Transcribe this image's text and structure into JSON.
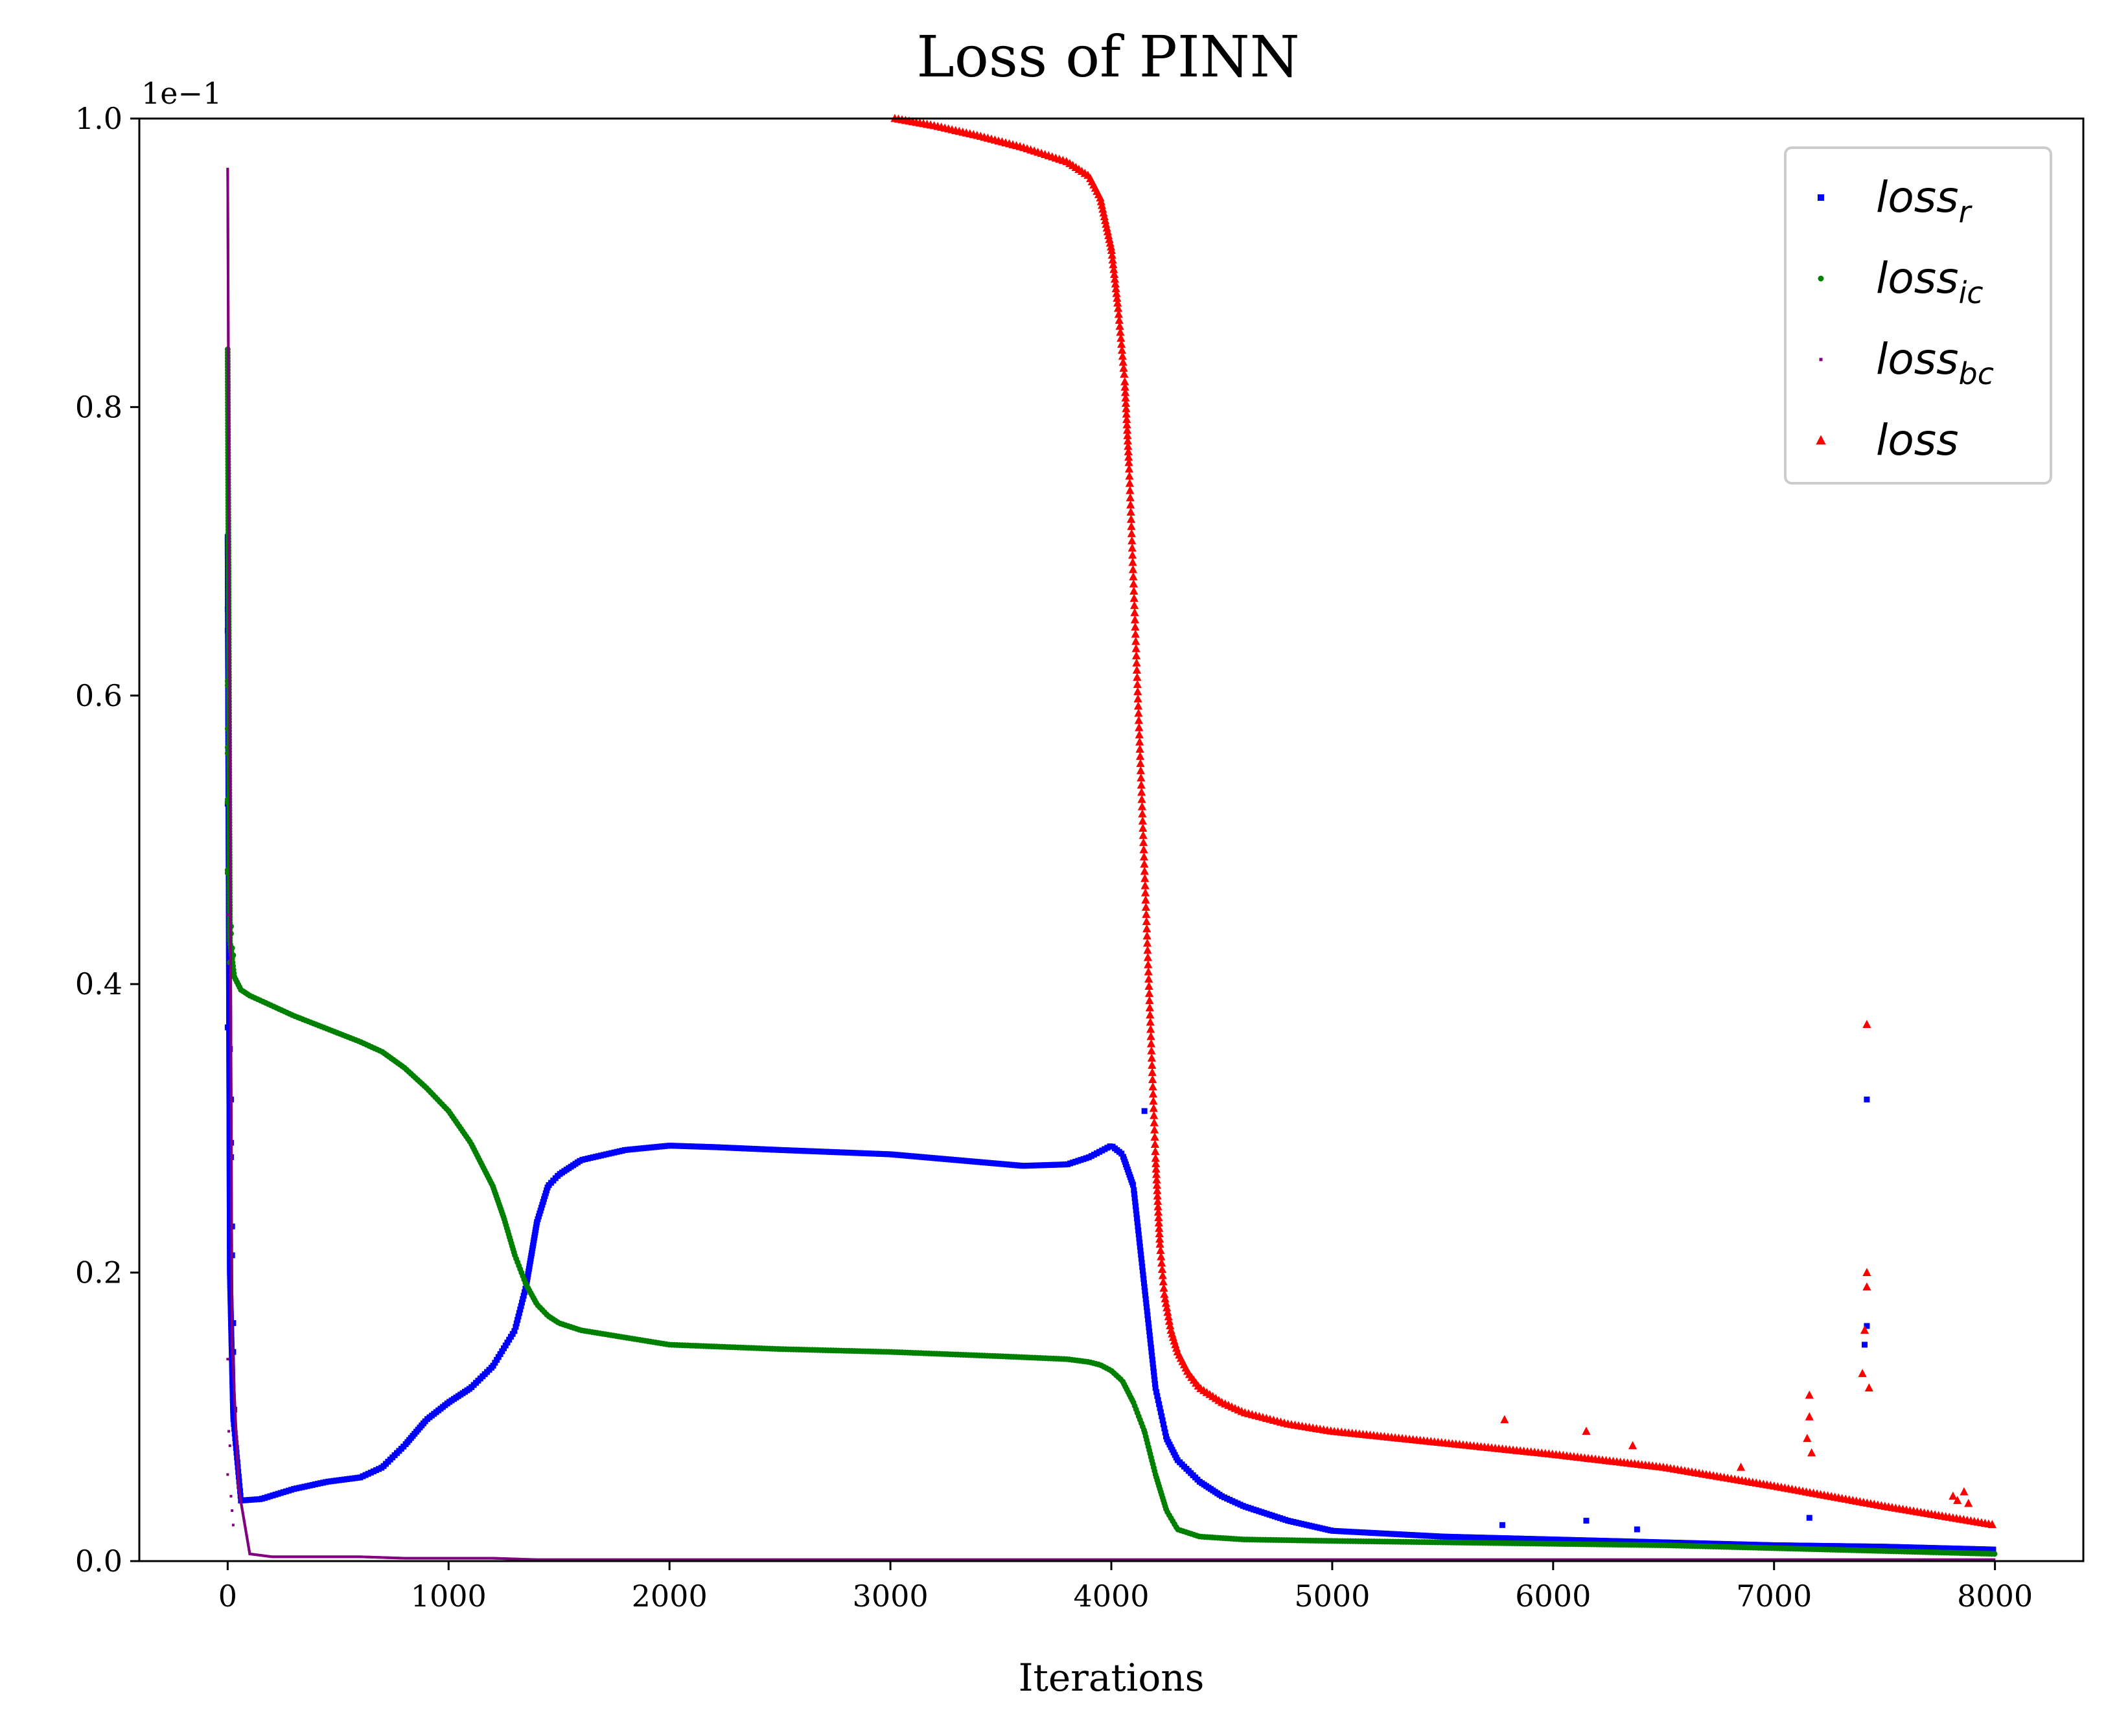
{
  "chart_data": {
    "type": "scatter",
    "title": "Loss of PINN",
    "xlabel": "Iterations",
    "ylabel": "",
    "y_offset_label": "1e−1",
    "xlim": [
      -400,
      8400
    ],
    "ylim": [
      0.0,
      1.0
    ],
    "x_ticks": [
      0,
      1000,
      2000,
      3000,
      4000,
      5000,
      6000,
      7000,
      8000
    ],
    "x_tick_labels": [
      "0",
      "1000",
      "2000",
      "3000",
      "4000",
      "5000",
      "6000",
      "7000",
      "8000"
    ],
    "y_ticks": [
      0.0,
      0.2,
      0.4,
      0.6,
      0.8,
      1.0
    ],
    "y_tick_labels": [
      "0.0",
      "0.2",
      "0.4",
      "0.6",
      "0.8",
      "1.0"
    ],
    "grid": false,
    "legend_position": "top-right",
    "series": [
      {
        "name": "loss_r",
        "legend_base": "loss",
        "legend_sub": "r",
        "marker": "square",
        "color": "#0000ff",
        "x": [
          0,
          10,
          25,
          60,
          150,
          300,
          450,
          600,
          700,
          800,
          900,
          1000,
          1100,
          1200,
          1300,
          1350,
          1400,
          1450,
          1500,
          1600,
          1800,
          2000,
          2200,
          2500,
          3000,
          3300,
          3600,
          3800,
          3900,
          4000,
          4050,
          4100,
          4150,
          4200,
          4250,
          4300,
          4400,
          4500,
          4600,
          4800,
          5000,
          5500,
          6000,
          6500,
          7000,
          7500,
          8000
        ],
        "y": [
          0.71,
          0.2,
          0.1,
          0.042,
          0.043,
          0.05,
          0.055,
          0.058,
          0.065,
          0.08,
          0.098,
          0.11,
          0.12,
          0.135,
          0.16,
          0.19,
          0.235,
          0.26,
          0.268,
          0.278,
          0.285,
          0.288,
          0.287,
          0.285,
          0.282,
          0.278,
          0.274,
          0.275,
          0.28,
          0.288,
          0.282,
          0.26,
          0.19,
          0.12,
          0.085,
          0.07,
          0.055,
          0.045,
          0.038,
          0.028,
          0.021,
          0.017,
          0.015,
          0.013,
          0.011,
          0.01,
          0.008
        ],
        "spikes": [
          {
            "x": 0,
            "y": 0.66
          },
          {
            "x": 0,
            "y": 0.645
          },
          {
            "x": 0,
            "y": 0.525
          },
          {
            "x": 0,
            "y": 0.37
          },
          {
            "x": 5,
            "y": 0.51
          },
          {
            "x": 5,
            "y": 0.485
          },
          {
            "x": 10,
            "y": 0.355
          },
          {
            "x": 15,
            "y": 0.32
          },
          {
            "x": 15,
            "y": 0.29
          },
          {
            "x": 15,
            "y": 0.28
          },
          {
            "x": 20,
            "y": 0.232
          },
          {
            "x": 20,
            "y": 0.212
          },
          {
            "x": 25,
            "y": 0.165
          },
          {
            "x": 25,
            "y": 0.145
          },
          {
            "x": 30,
            "y": 0.105
          },
          {
            "x": 4150,
            "y": 0.312
          },
          {
            "x": 7420,
            "y": 0.32
          },
          {
            "x": 7420,
            "y": 0.163
          },
          {
            "x": 7410,
            "y": 0.15
          },
          {
            "x": 7160,
            "y": 0.03
          },
          {
            "x": 5770,
            "y": 0.025
          },
          {
            "x": 6150,
            "y": 0.028
          },
          {
            "x": 6380,
            "y": 0.022
          }
        ]
      },
      {
        "name": "loss_ic",
        "legend_base": "loss",
        "legend_sub": "ic",
        "marker": "circle",
        "color": "#008000",
        "x": [
          0,
          10,
          30,
          60,
          100,
          200,
          300,
          400,
          500,
          600,
          700,
          800,
          900,
          1000,
          1100,
          1200,
          1250,
          1300,
          1350,
          1400,
          1450,
          1500,
          1600,
          1800,
          2000,
          2500,
          3000,
          3500,
          3800,
          3900,
          3950,
          4000,
          4050,
          4100,
          4150,
          4200,
          4250,
          4300,
          4400,
          4600,
          5000,
          5500,
          6000,
          6500,
          7000,
          7500,
          8000
        ],
        "y": [
          0.84,
          0.43,
          0.405,
          0.396,
          0.392,
          0.385,
          0.378,
          0.372,
          0.366,
          0.36,
          0.353,
          0.342,
          0.328,
          0.312,
          0.29,
          0.26,
          0.238,
          0.212,
          0.192,
          0.178,
          0.17,
          0.165,
          0.16,
          0.155,
          0.15,
          0.147,
          0.145,
          0.142,
          0.14,
          0.138,
          0.136,
          0.132,
          0.125,
          0.11,
          0.09,
          0.06,
          0.035,
          0.022,
          0.017,
          0.015,
          0.014,
          0.013,
          0.012,
          0.011,
          0.009,
          0.007,
          0.005
        ],
        "spikes": [
          {
            "x": 0,
            "y": 0.61
          },
          {
            "x": 0,
            "y": 0.607
          },
          {
            "x": 0,
            "y": 0.577
          },
          {
            "x": 0,
            "y": 0.564
          },
          {
            "x": 0,
            "y": 0.56
          },
          {
            "x": 0,
            "y": 0.528
          },
          {
            "x": 0,
            "y": 0.526
          },
          {
            "x": 0,
            "y": 0.479
          },
          {
            "x": 0,
            "y": 0.477
          },
          {
            "x": 15,
            "y": 0.44
          },
          {
            "x": 15,
            "y": 0.435
          },
          {
            "x": 20,
            "y": 0.425
          },
          {
            "x": 25,
            "y": 0.42
          },
          {
            "x": 10,
            "y": 0.415
          }
        ]
      },
      {
        "name": "loss_bc",
        "legend_base": "loss",
        "legend_sub": "bc",
        "marker": "pixel",
        "color": "#800080",
        "x": [
          0,
          20,
          50,
          100,
          200,
          400,
          600,
          800,
          1000,
          1200,
          1400,
          2000,
          3000,
          4000,
          5000,
          6000,
          7000,
          8000
        ],
        "y": [
          0.965,
          0.15,
          0.05,
          0.005,
          0.003,
          0.003,
          0.003,
          0.002,
          0.002,
          0.002,
          0.001,
          0.001,
          0.001,
          0.001,
          0.001,
          0.001,
          0.001,
          0.001
        ],
        "spikes": [
          {
            "x": 0,
            "y": 0.448
          },
          {
            "x": 0,
            "y": 0.14
          },
          {
            "x": 5,
            "y": 0.09
          },
          {
            "x": 10,
            "y": 0.08
          },
          {
            "x": 0,
            "y": 0.06
          },
          {
            "x": 15,
            "y": 0.045
          },
          {
            "x": 20,
            "y": 0.035
          },
          {
            "x": 25,
            "y": 0.025
          }
        ]
      },
      {
        "name": "loss",
        "legend_base": "loss",
        "legend_sub": "",
        "marker": "triangle",
        "color": "#ff0000",
        "x": [
          3020,
          3200,
          3400,
          3600,
          3800,
          3900,
          3950,
          4000,
          4030,
          4060,
          4080,
          4100,
          4120,
          4140,
          4160,
          4180,
          4200,
          4220,
          4240,
          4270,
          4300,
          4350,
          4400,
          4500,
          4600,
          4800,
          5000,
          5500,
          6000,
          6500,
          7000,
          7500,
          8000
        ],
        "y": [
          1.0,
          0.995,
          0.988,
          0.98,
          0.97,
          0.96,
          0.945,
          0.91,
          0.87,
          0.82,
          0.76,
          0.68,
          0.6,
          0.52,
          0.44,
          0.36,
          0.28,
          0.22,
          0.185,
          0.16,
          0.145,
          0.13,
          0.12,
          0.11,
          0.103,
          0.095,
          0.09,
          0.082,
          0.074,
          0.065,
          0.052,
          0.038,
          0.025
        ],
        "spikes": [
          {
            "x": 7420,
            "y": 0.372
          },
          {
            "x": 7420,
            "y": 0.2
          },
          {
            "x": 7420,
            "y": 0.19
          },
          {
            "x": 7410,
            "y": 0.16
          },
          {
            "x": 7400,
            "y": 0.13
          },
          {
            "x": 7430,
            "y": 0.12
          },
          {
            "x": 7160,
            "y": 0.115
          },
          {
            "x": 7160,
            "y": 0.1
          },
          {
            "x": 7150,
            "y": 0.085
          },
          {
            "x": 7170,
            "y": 0.075
          },
          {
            "x": 5780,
            "y": 0.098
          },
          {
            "x": 6150,
            "y": 0.09
          },
          {
            "x": 6360,
            "y": 0.08
          },
          {
            "x": 6850,
            "y": 0.065
          },
          {
            "x": 7810,
            "y": 0.045
          },
          {
            "x": 7830,
            "y": 0.042
          },
          {
            "x": 7860,
            "y": 0.048
          },
          {
            "x": 7880,
            "y": 0.04
          }
        ]
      }
    ]
  }
}
